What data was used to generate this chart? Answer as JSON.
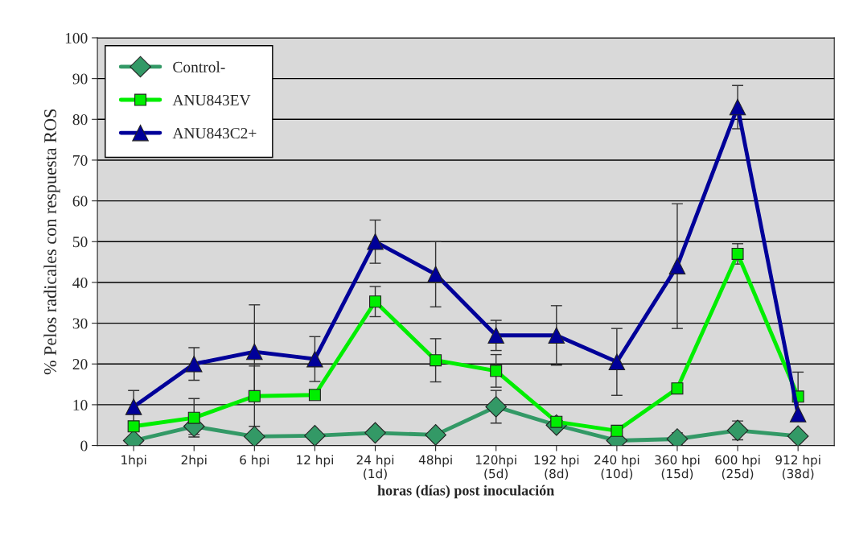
{
  "chart_data": {
    "type": "line",
    "xlabel": "horas (días) post inoculación",
    "ylabel": "% Pelos radicales con respuesta ROS",
    "categories": [
      "1hpi",
      "2hpi",
      "6 hpi",
      "12 hpi",
      "24 hpi\n(1d)",
      "48hpi",
      "120hpi\n(5d)",
      "192 hpi\n(8d)",
      "240 hpi\n(10d)",
      "360 hpi\n(15d)",
      "600 hpi\n(25d)",
      "912 hpi\n(38d)"
    ],
    "series": [
      {
        "name": "Control-",
        "color": "#339966",
        "marker": "diamond",
        "values": [
          1.2,
          4.7,
          2.2,
          2.4,
          3.1,
          2.6,
          9.5,
          5,
          1.2,
          1.6,
          3.7,
          2.3
        ],
        "errors": [
          null,
          2,
          null,
          null,
          null,
          null,
          4,
          null,
          null,
          1.5,
          2.3,
          null
        ]
      },
      {
        "name": "ANU843EV",
        "color": "#00ee00",
        "marker": "square",
        "values": [
          4.7,
          6.8,
          12.1,
          12.4,
          35.3,
          20.9,
          18.3,
          5.8,
          3.6,
          14,
          47,
          12
        ],
        "errors": [
          null,
          4.7,
          7.4,
          null,
          3.7,
          5.3,
          4,
          null,
          null,
          null,
          2.5,
          6
        ]
      },
      {
        "name": "ANU843C2+",
        "color": "#000099",
        "marker": "triangle",
        "values": [
          9.5,
          20,
          23,
          21.2,
          50,
          42,
          27,
          27,
          20.5,
          44,
          83,
          7.7
        ],
        "errors": [
          4,
          4,
          11.5,
          5.5,
          5.3,
          8,
          3.7,
          7.3,
          8.2,
          15.3,
          5.3,
          null
        ]
      }
    ],
    "ylim": [
      0,
      100
    ],
    "yticks": [
      0,
      10,
      20,
      30,
      40,
      50,
      60,
      70,
      80,
      90,
      100
    ],
    "grid": "y",
    "legend": "top left"
  }
}
